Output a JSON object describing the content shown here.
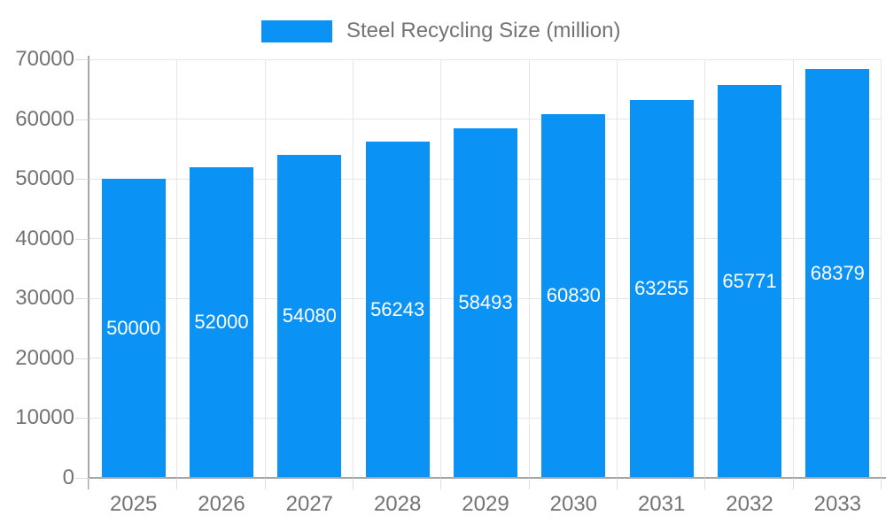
{
  "chart_data": {
    "type": "bar",
    "title": "",
    "legend": "Steel Recycling Size (million)",
    "categories": [
      "2025",
      "2026",
      "2027",
      "2028",
      "2029",
      "2030",
      "2031",
      "2032",
      "2033"
    ],
    "values": [
      50000,
      52000,
      54080,
      56243,
      58493,
      60830,
      63255,
      65771,
      68379
    ],
    "xlabel": "",
    "ylabel": "",
    "ylim": [
      0,
      70000
    ],
    "yticks": [
      0,
      10000,
      20000,
      30000,
      40000,
      50000,
      60000,
      70000
    ],
    "grid": true,
    "legend_position": "top-center",
    "bar_labels_visible": true,
    "colors": {
      "bar": "#0b92f5",
      "bar_label": "#ffffff",
      "axis_text": "#737373",
      "legend_text": "#737373",
      "gridline": "#e6e6e6",
      "axis_line": "#a6a6a6",
      "tick": "#dcdcdc",
      "background": "#ffffff"
    }
  }
}
